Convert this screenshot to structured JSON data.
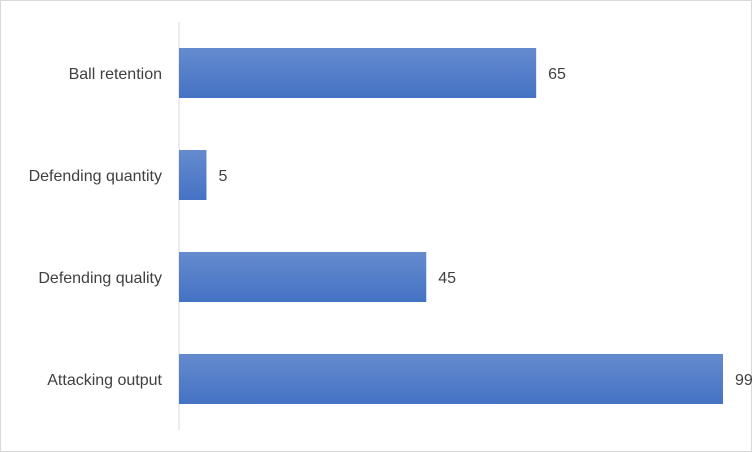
{
  "chart_data": {
    "type": "bar",
    "orientation": "horizontal",
    "categories": [
      "Ball retention",
      "Defending quantity",
      "Defending quality",
      "Attacking output"
    ],
    "values": [
      65,
      5,
      45,
      99
    ],
    "color": "#4472c4"
  }
}
